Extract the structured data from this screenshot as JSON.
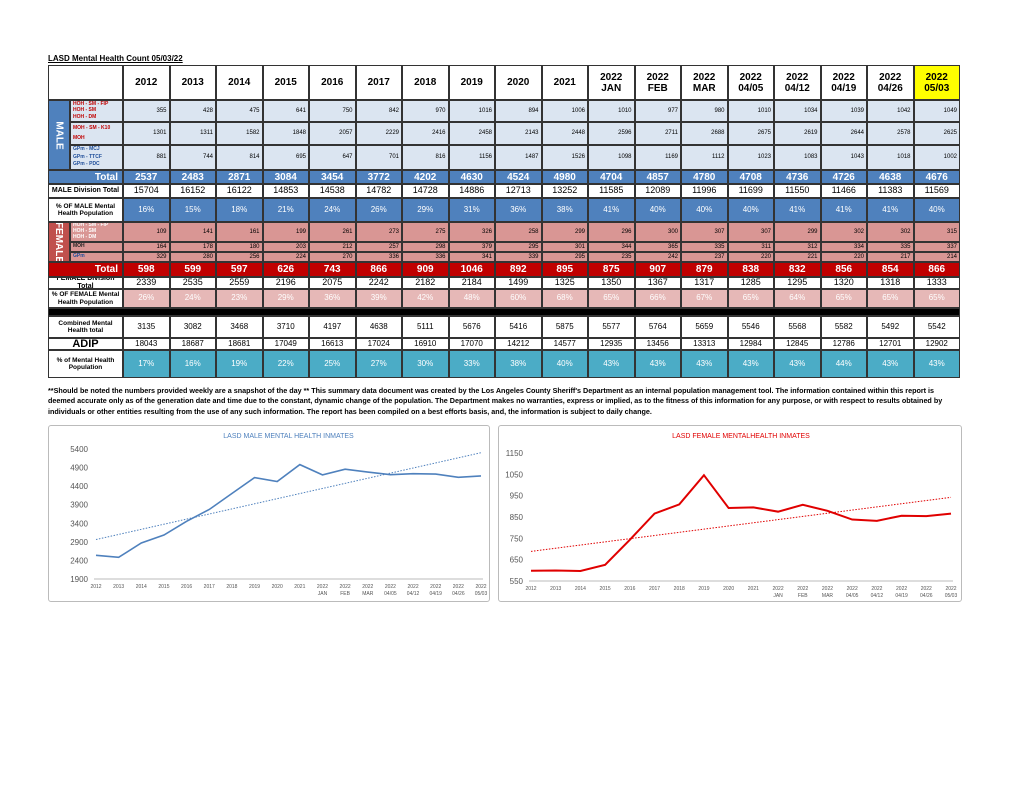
{
  "header": {
    "title": "LASD Mental Health Count 05/03/22"
  },
  "table": {
    "columns": [
      [
        "2012"
      ],
      [
        "2013"
      ],
      [
        "2014"
      ],
      [
        "2015"
      ],
      [
        "2016"
      ],
      [
        "2017"
      ],
      [
        "2018"
      ],
      [
        "2019"
      ],
      [
        "2020"
      ],
      [
        "2021"
      ],
      [
        "2022",
        "JAN"
      ],
      [
        "2022",
        "FEB"
      ],
      [
        "2022",
        "MAR"
      ],
      [
        "2022",
        "04/05"
      ],
      [
        "2022",
        "04/12"
      ],
      [
        "2022",
        "04/19"
      ],
      [
        "2022",
        "04/26"
      ],
      [
        "2022",
        "05/03"
      ]
    ],
    "male": {
      "label": "MALE",
      "groups": [
        {
          "labels": [
            "HOH - SM - FIP",
            "HOH - SM",
            "HOH - DM"
          ],
          "totals": [
            355,
            428,
            475,
            641,
            750,
            842,
            970,
            1016,
            894,
            1006,
            1010,
            977,
            980,
            1010,
            1034,
            1039,
            1042,
            1049
          ]
        },
        {
          "labels": [
            "MOH - SM - K10",
            "MOH"
          ],
          "totals": [
            1301,
            1311,
            1582,
            1848,
            2057,
            2229,
            2416,
            2458,
            2143,
            2448,
            2596,
            2711,
            2688,
            2675,
            2619,
            2644,
            2578,
            2625
          ]
        },
        {
          "labels": [
            "GPm - MCJ",
            "GPm - TTCF",
            "GPm - PDC"
          ],
          "totals": [
            881,
            744,
            814,
            695,
            647,
            701,
            816,
            1156,
            1487,
            1526,
            1098,
            1169,
            1112,
            1023,
            1083,
            1043,
            1018,
            1002
          ]
        }
      ],
      "total": {
        "label": "Total",
        "values": [
          2537,
          2483,
          2871,
          3084,
          3454,
          3772,
          4202,
          4630,
          4524,
          4980,
          4704,
          4857,
          4780,
          4708,
          4736,
          4726,
          4638,
          4676
        ]
      },
      "division": {
        "label": "MALE Division Total",
        "values": [
          15704,
          16152,
          16122,
          14853,
          14538,
          14782,
          14728,
          14886,
          12713,
          13252,
          11585,
          12089,
          11996,
          11699,
          11550,
          11466,
          11383,
          11569
        ]
      },
      "percent": {
        "label": "% OF MALE Mental Health Population",
        "values": [
          "16%",
          "15%",
          "18%",
          "21%",
          "24%",
          "26%",
          "29%",
          "31%",
          "36%",
          "38%",
          "41%",
          "40%",
          "40%",
          "40%",
          "41%",
          "41%",
          "41%",
          "40%"
        ]
      }
    },
    "female": {
      "label": "FEMALE",
      "groups": [
        {
          "labels": [
            "HOH - SM - FIP",
            "HOH - SM",
            "HOH - DM"
          ],
          "totals": [
            109,
            141,
            161,
            199,
            261,
            273,
            275,
            326,
            258,
            299,
            296,
            300,
            307,
            307,
            299,
            302,
            302,
            315
          ]
        },
        {
          "labels": [
            "MOH"
          ],
          "totals": [
            164,
            178,
            180,
            203,
            212,
            257,
            298,
            379,
            295,
            301,
            344,
            365,
            335,
            311,
            312,
            334,
            335,
            337
          ]
        },
        {
          "labels": [
            "GPm"
          ],
          "totals": [
            329,
            280,
            256,
            224,
            270,
            336,
            336,
            341,
            339,
            295,
            235,
            242,
            237,
            220,
            221,
            220,
            217,
            214
          ]
        }
      ],
      "total": {
        "label": "Total",
        "values": [
          598,
          599,
          597,
          626,
          743,
          866,
          909,
          1046,
          892,
          895,
          875,
          907,
          879,
          838,
          832,
          856,
          854,
          866
        ]
      },
      "division": {
        "label": "FEMALE Division Total",
        "values": [
          2339,
          2535,
          2559,
          2196,
          2075,
          2242,
          2182,
          2184,
          1499,
          1325,
          1350,
          1367,
          1317,
          1285,
          1295,
          1320,
          1318,
          1333
        ]
      },
      "percent": {
        "label": "% OF FEMALE Mental Health Population",
        "values": [
          "26%",
          "24%",
          "23%",
          "29%",
          "36%",
          "39%",
          "42%",
          "48%",
          "60%",
          "68%",
          "65%",
          "66%",
          "67%",
          "65%",
          "64%",
          "65%",
          "65%",
          "65%"
        ]
      }
    },
    "combined": {
      "label": "Combined Mental Health total",
      "values": [
        3135,
        3082,
        3468,
        3710,
        4197,
        4638,
        5111,
        5676,
        5416,
        5875,
        5577,
        5764,
        5659,
        5546,
        5568,
        5582,
        5492,
        5542
      ]
    },
    "adip": {
      "label": "ADIP",
      "values": [
        18043,
        18687,
        18681,
        17049,
        16613,
        17024,
        16910,
        17070,
        14212,
        14577,
        12935,
        13456,
        13313,
        12984,
        12845,
        12786,
        12701,
        12902
      ]
    },
    "percent": {
      "label": "% of Mental Health Population",
      "values": [
        "17%",
        "16%",
        "19%",
        "22%",
        "25%",
        "27%",
        "30%",
        "33%",
        "38%",
        "40%",
        "43%",
        "43%",
        "43%",
        "43%",
        "43%",
        "44%",
        "43%",
        "43%"
      ]
    }
  },
  "footnote": "**Should be noted the numbers provided weekly are a snapshot of the day ** This summary data document was created by the Los Angeles County Sheriff's Department as an internal population management tool.  The information contained within this report is deemed accurate only as of the generation date and time due to the constant, dynamic change of the population.  The Department makes no warranties, express or implied, as to the fitness of this information for any purpose, or with respect to results obtained by individuals or other entities resulting from the use of any such information.  The report has been compiled on a best efforts basis, and, the information is subject to daily change.",
  "charts": [
    {
      "type": "line",
      "title": "LASD MALE MENTAL HEALTH INMATES",
      "color": "#4f81bd",
      "trendline": true,
      "x": [
        [
          "2012"
        ],
        [
          "2013"
        ],
        [
          "2014"
        ],
        [
          "2015"
        ],
        [
          "2016"
        ],
        [
          "2017"
        ],
        [
          "2018"
        ],
        [
          "2019"
        ],
        [
          "2020"
        ],
        [
          "2021"
        ],
        [
          "2022",
          "JAN"
        ],
        [
          "2022",
          "FEB"
        ],
        [
          "2022",
          "MAR"
        ],
        [
          "2022",
          "04/05"
        ],
        [
          "2022",
          "04/12"
        ],
        [
          "2022",
          "04/19"
        ],
        [
          "2022",
          "04/26"
        ],
        [
          "2022",
          "05/03"
        ]
      ],
      "values": [
        2537,
        2483,
        2871,
        3084,
        3454,
        3772,
        4202,
        4630,
        4524,
        4980,
        4704,
        4857,
        4780,
        4708,
        4736,
        4726,
        4638,
        4676
      ],
      "ylim": [
        1900,
        5400
      ],
      "yticks": [
        1900,
        2400,
        2900,
        3400,
        3900,
        4400,
        4900,
        5400
      ]
    },
    {
      "type": "line",
      "title": "LASD FEMALE MENTALHEALTH INMATES",
      "color": "#e00000",
      "trendline": true,
      "x": [
        [
          "2012"
        ],
        [
          "2013"
        ],
        [
          "2014"
        ],
        [
          "2015"
        ],
        [
          "2016"
        ],
        [
          "2017"
        ],
        [
          "2018"
        ],
        [
          "2019"
        ],
        [
          "2020"
        ],
        [
          "2021"
        ],
        [
          "2022",
          "JAN"
        ],
        [
          "2022",
          "FEB"
        ],
        [
          "2022",
          "MAR"
        ],
        [
          "2022",
          "04/05"
        ],
        [
          "2022",
          "04/12"
        ],
        [
          "2022",
          "04/19"
        ],
        [
          "2022",
          "04/26"
        ],
        [
          "2022",
          "05/03"
        ]
      ],
      "values": [
        598,
        599,
        597,
        626,
        743,
        866,
        909,
        1046,
        892,
        895,
        875,
        907,
        879,
        838,
        832,
        856,
        854,
        866
      ],
      "ylim": [
        550,
        1150
      ],
      "yticks": [
        550,
        650,
        750,
        850,
        950,
        1050,
        1150
      ]
    }
  ]
}
